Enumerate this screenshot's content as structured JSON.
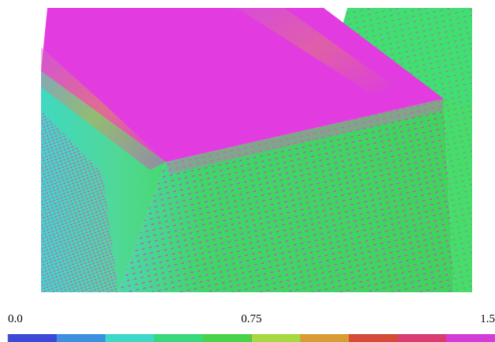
{
  "colorbar": {
    "lim": [
      0,
      1.5
    ],
    "ticks": [
      {
        "value": 0,
        "label": "0.0"
      },
      0.75,
      1.5
    ],
    "colors": [
      "#3c48d8",
      "#3d90e0",
      "#3ed8c8",
      "#38d87c",
      "#48d448",
      "#a8d840",
      "#d89c34",
      "#d84a38",
      "#d83c70",
      "#d43cd8"
    ]
  }
}
